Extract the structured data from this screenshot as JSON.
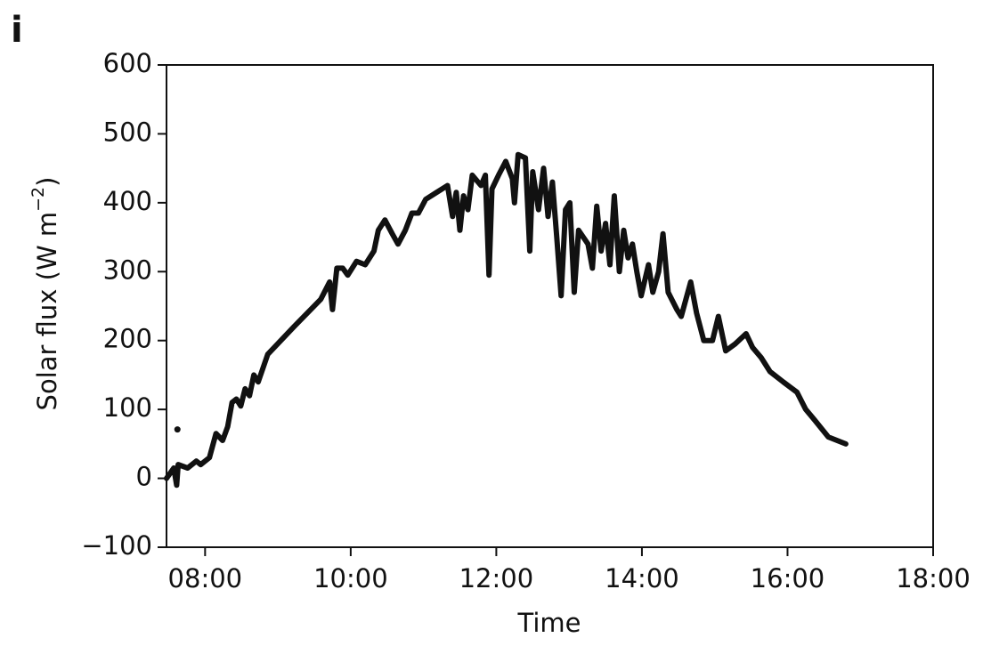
{
  "chart_data": {
    "type": "line",
    "panel": "i",
    "xlabel": "Time",
    "ylabel": "Solar flux (W m",
    "ylabel_sup": "−2",
    "ylabel_end": ")",
    "color": "#111111",
    "xlim": [
      7.47,
      18
    ],
    "ylim": [
      -100,
      600
    ],
    "xticks": [
      {
        "value": 8,
        "label": "08:00"
      },
      {
        "value": 10,
        "label": "10:00"
      },
      {
        "value": 12,
        "label": "12:00"
      },
      {
        "value": 14,
        "label": "14:00"
      },
      {
        "value": 16,
        "label": "16:00"
      },
      {
        "value": 18,
        "label": "18:00"
      }
    ],
    "yticks": [
      {
        "value": -100,
        "label": "−100"
      },
      0,
      100,
      200,
      300,
      400,
      500,
      600
    ],
    "x": [
      7.47,
      7.57,
      7.61,
      7.63,
      7.76,
      7.88,
      7.94,
      8.06,
      8.15,
      8.24,
      8.31,
      8.37,
      8.43,
      8.49,
      8.55,
      8.61,
      8.67,
      8.73,
      8.86,
      9.22,
      9.59,
      9.71,
      9.75,
      9.81,
      9.89,
      9.96,
      10.08,
      10.2,
      10.32,
      10.38,
      10.47,
      10.57,
      10.65,
      10.75,
      10.84,
      10.93,
      11.03,
      11.18,
      11.33,
      11.4,
      11.45,
      11.5,
      11.55,
      11.61,
      11.67,
      11.79,
      11.85,
      11.9,
      11.94,
      12.03,
      12.13,
      12.22,
      12.25,
      12.3,
      12.4,
      12.46,
      12.5,
      12.58,
      12.65,
      12.71,
      12.77,
      12.83,
      12.89,
      12.95,
      13.01,
      13.07,
      13.13,
      13.26,
      13.32,
      13.38,
      13.44,
      13.5,
      13.56,
      13.62,
      13.69,
      13.75,
      13.81,
      13.87,
      13.93,
      13.99,
      14.09,
      14.15,
      14.23,
      14.29,
      14.36,
      14.48,
      14.54,
      14.67,
      14.75,
      14.85,
      14.97,
      15.05,
      15.15,
      15.28,
      15.43,
      15.52,
      15.64,
      15.76,
      15.94,
      16.13,
      16.25,
      16.37,
      16.56,
      16.8
    ],
    "values": [
      0,
      15,
      -10,
      20,
      15,
      25,
      20,
      30,
      65,
      55,
      75,
      110,
      115,
      105,
      130,
      120,
      150,
      140,
      180,
      220,
      260,
      285,
      245,
      305,
      305,
      295,
      315,
      310,
      330,
      360,
      375,
      355,
      340,
      360,
      385,
      385,
      405,
      415,
      425,
      380,
      415,
      360,
      410,
      390,
      440,
      425,
      440,
      295,
      420,
      440,
      460,
      435,
      400,
      470,
      465,
      330,
      445,
      390,
      450,
      380,
      430,
      350,
      265,
      390,
      400,
      270,
      360,
      340,
      305,
      395,
      330,
      370,
      310,
      410,
      300,
      360,
      320,
      340,
      300,
      265,
      310,
      270,
      300,
      355,
      270,
      245,
      235,
      285,
      240,
      200,
      200,
      235,
      185,
      195,
      210,
      190,
      175,
      155,
      140,
      125,
      100,
      85,
      60,
      50
    ],
    "outliers": {
      "x": [
        7.62
      ],
      "values": [
        71
      ]
    }
  }
}
